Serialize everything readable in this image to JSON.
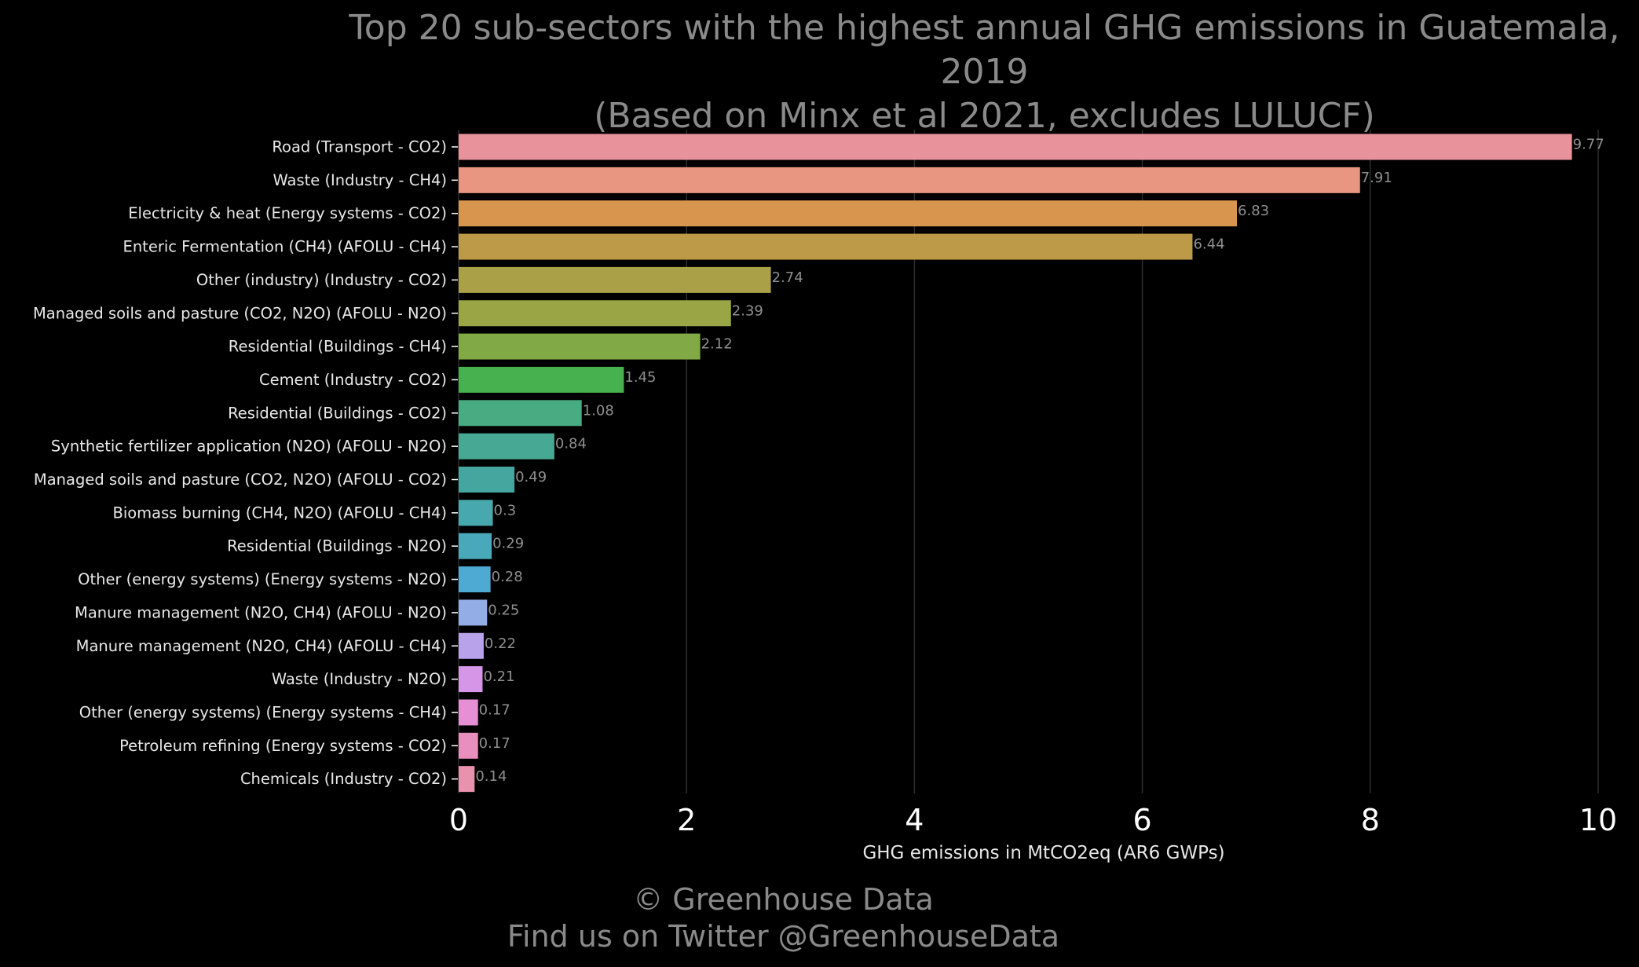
{
  "title": {
    "line1": "Top 20 sub-sectors with the highest annual GHG emissions in Guatemala, 2019",
    "line2": "(Based on Minx et al 2021, excludes LULUCF)"
  },
  "footer": {
    "copyright": "© Greenhouse Data",
    "twitter": "Find us on Twitter @GreenhouseData"
  },
  "chart_data": {
    "type": "bar",
    "orientation": "horizontal",
    "title": "Top 20 sub-sectors with the highest annual GHG emissions in Guatemala, 2019 (Based on Minx et al 2021, excludes LULUCF)",
    "xlabel": "GHG emissions in MtCO2eq (AR6 GWPs)",
    "ylabel": "",
    "xlim": [
      0,
      10
    ],
    "xticks": [
      0,
      2,
      4,
      6,
      8,
      10
    ],
    "grid": "vertical",
    "categories": [
      "Road (Transport - CO2)",
      "Waste (Industry - CH4)",
      "Electricity & heat (Energy systems - CO2)",
      "Enteric Fermentation (CH4) (AFOLU - CH4)",
      "Other (industry) (Industry - CO2)",
      "Managed soils and pasture (CO2, N2O) (AFOLU - N2O)",
      "Residential (Buildings - CH4)",
      "Cement (Industry - CO2)",
      "Residential (Buildings - CO2)",
      "Synthetic fertilizer application (N2O) (AFOLU - N2O)",
      "Managed soils and pasture (CO2, N2O) (AFOLU - CO2)",
      "Biomass burning (CH4, N2O) (AFOLU - CH4)",
      "Residential (Buildings - N2O)",
      "Other (energy systems) (Energy systems - N2O)",
      "Manure management (N2O, CH4) (AFOLU - N2O)",
      "Manure management (N2O, CH4) (AFOLU - CH4)",
      "Waste (Industry - N2O)",
      "Other (energy systems) (Energy systems - CH4)",
      "Petroleum refining (Energy systems - CO2)",
      "Chemicals (Industry - CO2)"
    ],
    "values": [
      9.77,
      7.91,
      6.83,
      6.44,
      2.74,
      2.39,
      2.12,
      1.45,
      1.08,
      0.84,
      0.49,
      0.3,
      0.29,
      0.28,
      0.25,
      0.22,
      0.21,
      0.17,
      0.17,
      0.14
    ],
    "value_labels": [
      "9.77",
      "7.91",
      "6.83",
      "6.44",
      "2.74",
      "2.39",
      "2.12",
      "1.45",
      "1.08",
      "0.84",
      "0.49",
      "0.3",
      "0.29",
      "0.28",
      "0.25",
      "0.22",
      "0.21",
      "0.17",
      "0.17",
      "0.14"
    ],
    "colors": [
      "#e8929b",
      "#e89581",
      "#d8954e",
      "#bc9a47",
      "#aaa048",
      "#9aa645",
      "#81a945",
      "#47b04f",
      "#48ab82",
      "#47a993",
      "#45a59f",
      "#47a9ad",
      "#49a8b9",
      "#4ea9d3",
      "#93aee6",
      "#b8a3ea",
      "#d596e7",
      "#e68fd5",
      "#e88fbd",
      "#e892ad"
    ],
    "colors_note": "bar fill colors, top to bottom",
    "text_colors": {
      "labels": "#e8e8e8",
      "value_labels": "#8f8f8f",
      "grid": "#2e2e2e",
      "axis": "#ffffff"
    }
  }
}
